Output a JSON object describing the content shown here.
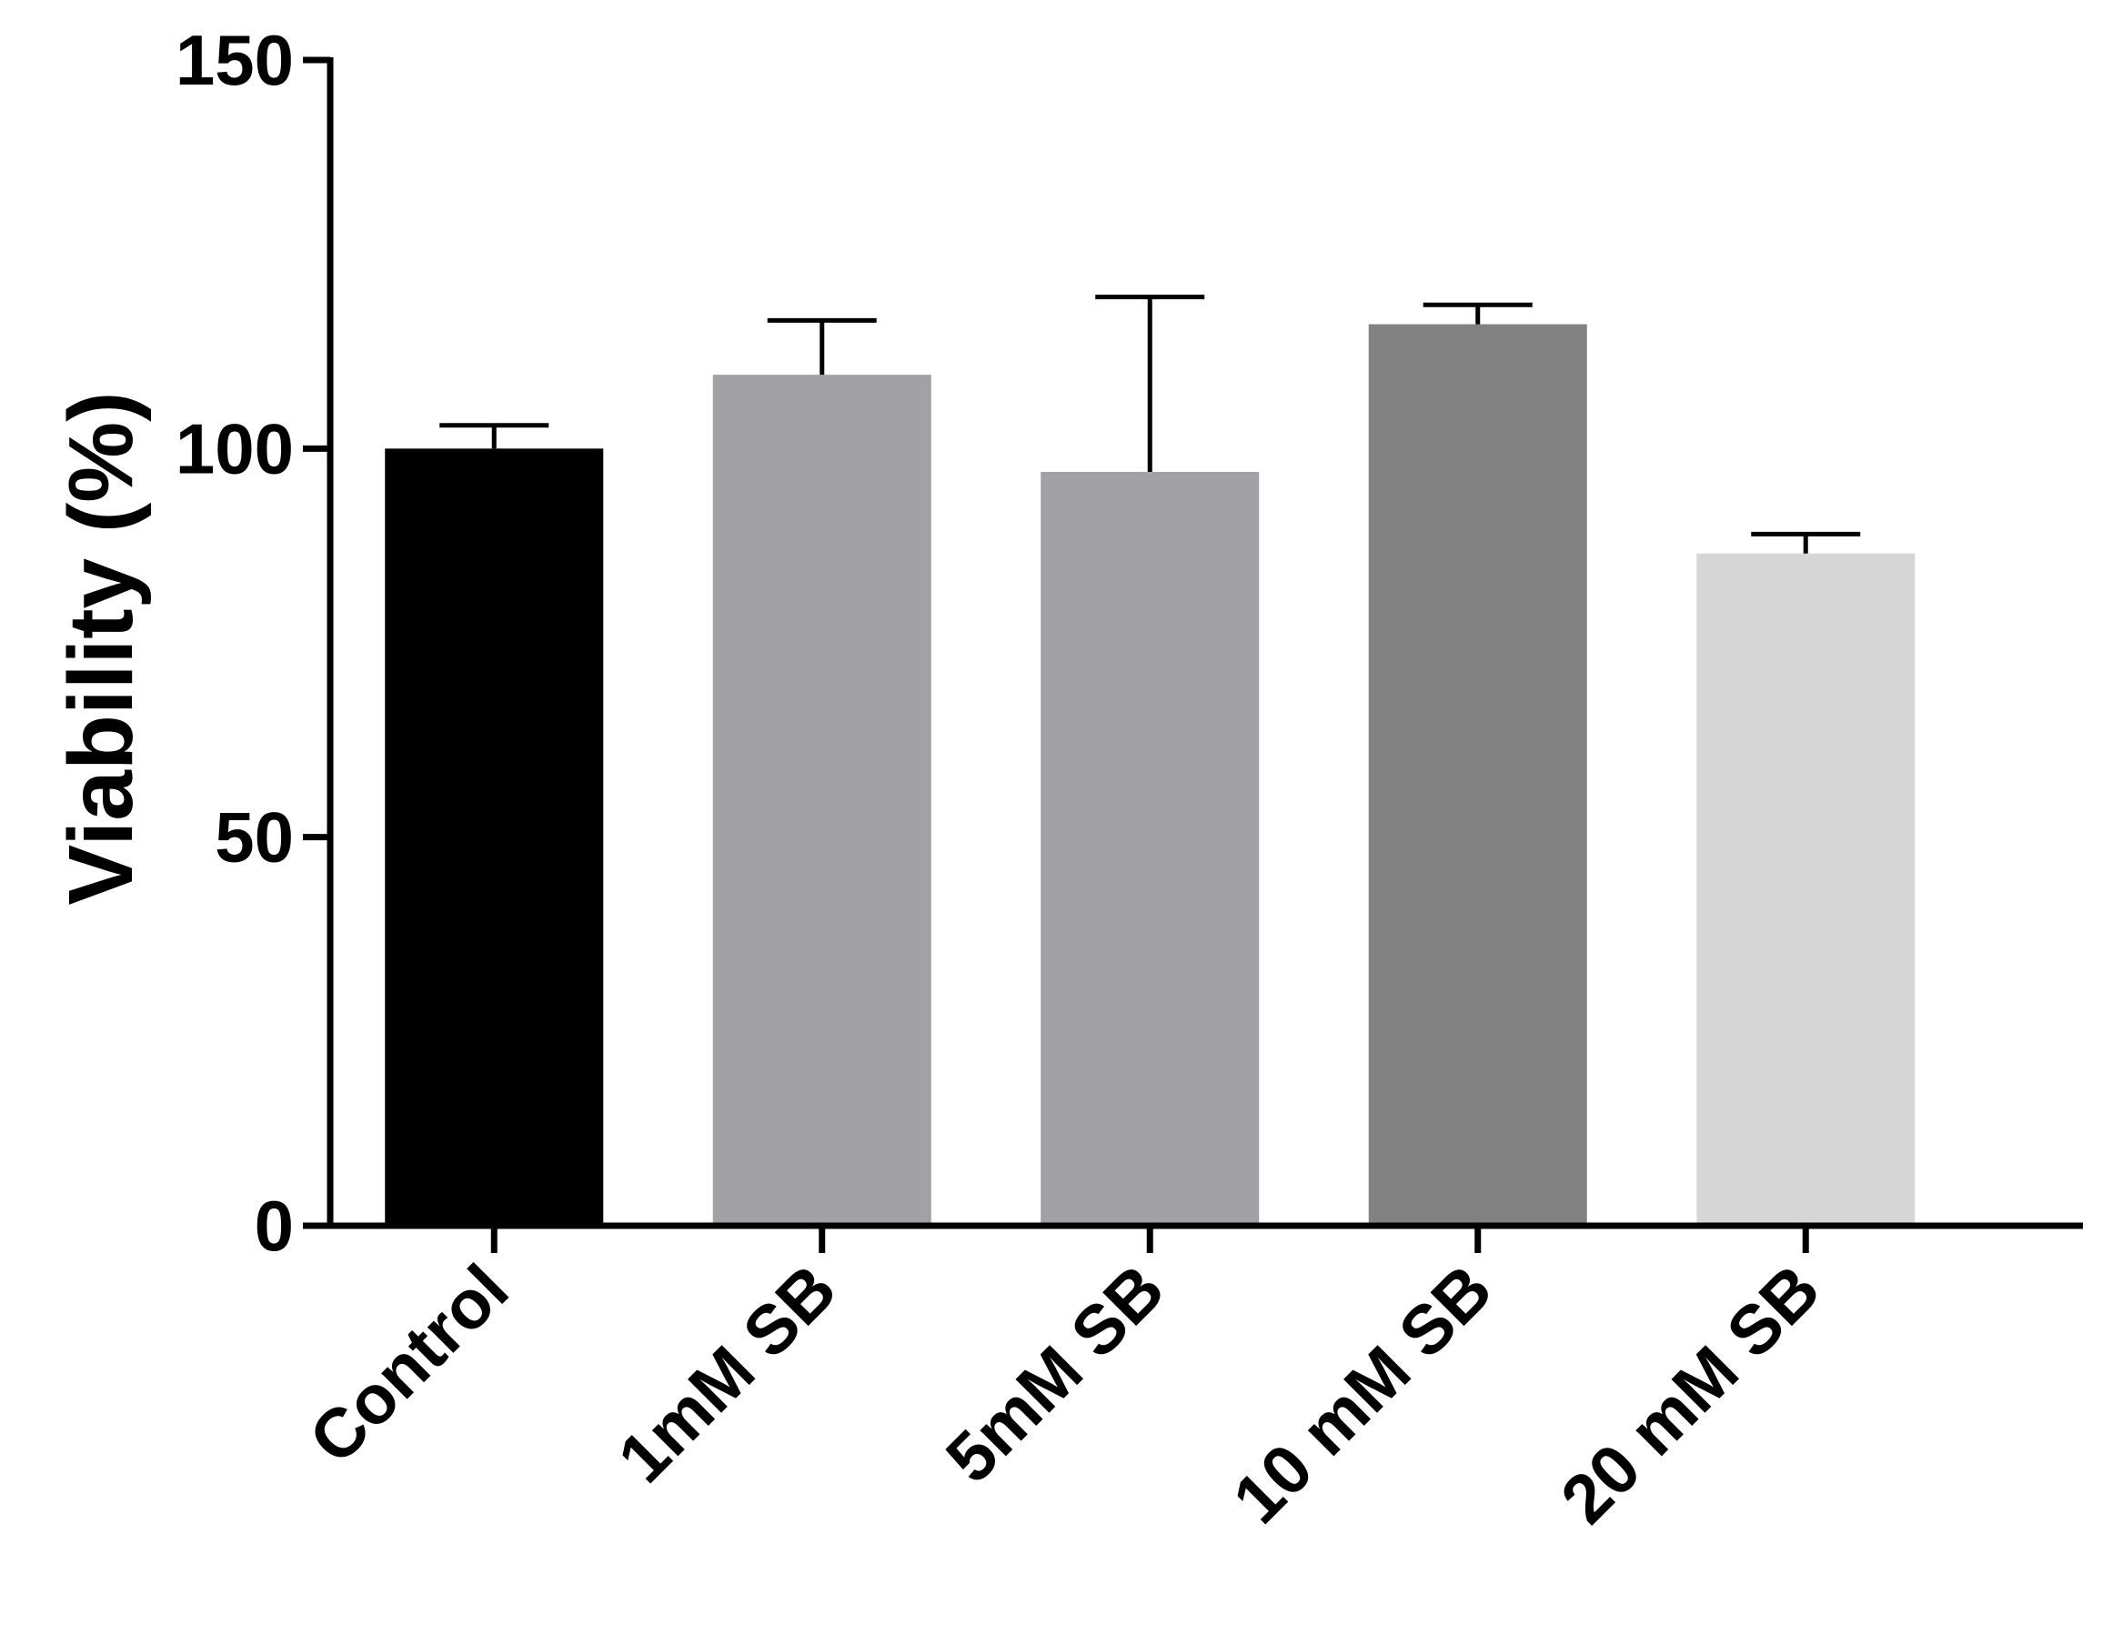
{
  "chart_data": {
    "type": "bar",
    "title": "",
    "xlabel": "",
    "ylabel": "Viability (%)",
    "ylim": [
      0,
      150
    ],
    "yticks": [
      0,
      50,
      100,
      150
    ],
    "grid": false,
    "legend": "none",
    "categories": [
      "Control",
      "1mM SB",
      "5mM SB",
      "10 mM SB",
      "20 mM SB"
    ],
    "values": [
      100,
      109.5,
      97,
      116,
      86.5
    ],
    "errors": [
      3,
      7,
      22.5,
      2.5,
      2.5
    ],
    "colors": [
      "#000000",
      "#a2a1a6",
      "#a2a1a6",
      "#818181",
      "#d6d6d6"
    ]
  }
}
